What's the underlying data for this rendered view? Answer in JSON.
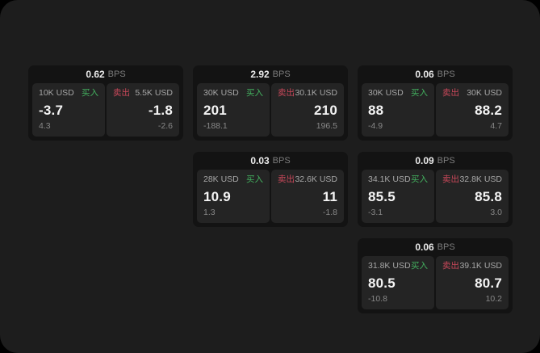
{
  "labels": {
    "bps_unit": "BPS",
    "buy": "买入",
    "sell": "卖出"
  },
  "colors": {
    "buy_green": "#43b15f",
    "sell_red": "#c9485a",
    "window_bg": "#1d1d1d",
    "card_bg": "#131313",
    "tile_bg": "#242424"
  },
  "cards": [
    {
      "bps": "0.62",
      "buy": {
        "amount": "10K USD",
        "price": "-3.7",
        "change": "4.3"
      },
      "sell": {
        "amount": "5.5K USD",
        "price": "-1.8",
        "change": "-2.6"
      }
    },
    {
      "bps": "2.92",
      "buy": {
        "amount": "30K USD",
        "price": "201",
        "change": "-188.1"
      },
      "sell": {
        "amount": "30.1K USD",
        "price": "210",
        "change": "196.5"
      }
    },
    {
      "bps": "0.06",
      "buy": {
        "amount": "30K USD",
        "price": "88",
        "change": "-4.9"
      },
      "sell": {
        "amount": "30K USD",
        "price": "88.2",
        "change": "4.7"
      }
    },
    {
      "bps": "0.03",
      "buy": {
        "amount": "28K USD",
        "price": "10.9",
        "change": "1.3"
      },
      "sell": {
        "amount": "32.6K USD",
        "price": "11",
        "change": "-1.8"
      }
    },
    {
      "bps": "0.09",
      "buy": {
        "amount": "34.1K USD",
        "price": "85.5",
        "change": "-3.1"
      },
      "sell": {
        "amount": "32.8K USD",
        "price": "85.8",
        "change": "3.0"
      }
    },
    {
      "bps": "0.06",
      "buy": {
        "amount": "31.8K USD",
        "price": "80.5",
        "change": "-10.8"
      },
      "sell": {
        "amount": "39.1K USD",
        "price": "80.7",
        "change": "10.2"
      }
    }
  ]
}
